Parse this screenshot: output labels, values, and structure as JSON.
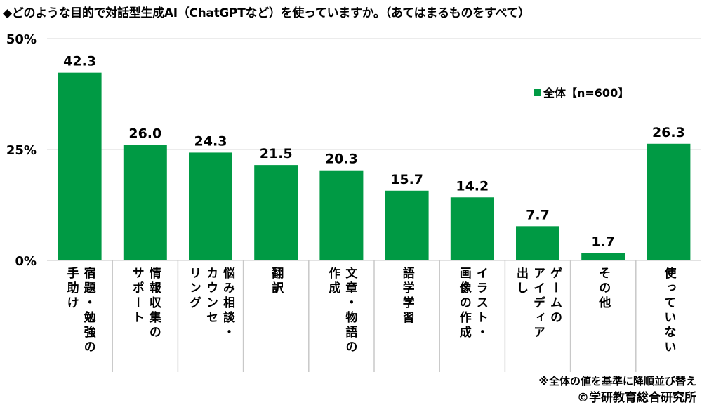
{
  "chart_data": {
    "type": "bar",
    "title": "◆どのような目的で対話型生成AI（ChatGPTなど）を使っていますか。（あてはまるものをすべて）",
    "categories": [
      "宿題・勉強の\n手助け",
      "情報収集の\nサポート",
      "悩み相談・\nカウンセ\nリング",
      "翻訳",
      "文章・物語の\n作成",
      "語学学習",
      "イラスト・\n画像の作成",
      "ゲームの\nアイディア\n出し",
      "その他",
      "使っていない"
    ],
    "series": [
      {
        "name": "全体【n=600】",
        "color": "#009a44",
        "values": [
          42.3,
          26.0,
          24.3,
          21.5,
          20.3,
          15.7,
          14.2,
          7.7,
          1.7,
          26.3
        ]
      }
    ],
    "ylim": [
      0,
      50
    ],
    "yticks": [
      0,
      25,
      50
    ],
    "ytick_labels": [
      "0%",
      "25%",
      "50%"
    ],
    "grid": true,
    "legend_position": "upper-right",
    "xlabel": "",
    "ylabel": ""
  },
  "note": "※全体の値を基準に降順並び替え",
  "credit": "©学研教育総合研究所"
}
